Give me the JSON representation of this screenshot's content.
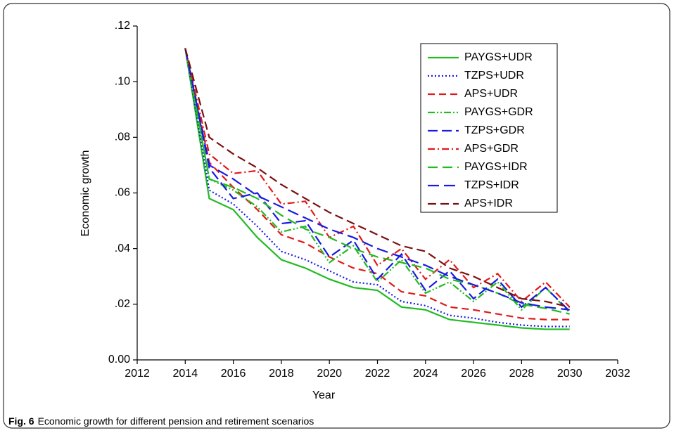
{
  "chart_data": {
    "type": "line",
    "caption_label": "Fig. 6",
    "caption": "Economic growth for different pension and retirement scenarios",
    "xlabel": "Year",
    "ylabel": "Economic growth",
    "x": [
      2014,
      2015,
      2016,
      2017,
      2018,
      2019,
      2020,
      2021,
      2022,
      2023,
      2024,
      2025,
      2026,
      2027,
      2028,
      2029,
      2030
    ],
    "xlim": [
      2012,
      2032
    ],
    "xticks": [
      2012,
      2014,
      2016,
      2018,
      2020,
      2022,
      2024,
      2026,
      2028,
      2030,
      2032
    ],
    "ylim": [
      0,
      0.12
    ],
    "yticks": [
      {
        "value": 0,
        "label": "0.00"
      },
      {
        "value": 0.02,
        "label": ".02"
      },
      {
        "value": 0.04,
        "label": ".04"
      },
      {
        "value": 0.06,
        "label": ".06"
      },
      {
        "value": 0.08,
        "label": ".08"
      },
      {
        "value": 0.1,
        "label": ".10"
      },
      {
        "value": 0.12,
        "label": ".12"
      }
    ],
    "legend": "upper right",
    "series": [
      {
        "name": "PAYGS+UDR",
        "color": "#22bb22",
        "dash": "none",
        "values": [
          0.112,
          0.058,
          0.054,
          0.044,
          0.036,
          0.033,
          0.029,
          0.026,
          0.025,
          0.019,
          0.018,
          0.0145,
          0.0135,
          0.0125,
          0.0115,
          0.011,
          0.011
        ]
      },
      {
        "name": "TZPS+UDR",
        "color": "#1a1ae0",
        "dash": "2,3",
        "values": [
          0.112,
          0.061,
          0.056,
          0.048,
          0.039,
          0.036,
          0.032,
          0.028,
          0.027,
          0.021,
          0.0195,
          0.016,
          0.015,
          0.0135,
          0.0125,
          0.012,
          0.012
        ]
      },
      {
        "name": "APS+UDR",
        "color": "#e01a1a",
        "dash": "10,6",
        "values": [
          0.112,
          0.071,
          0.062,
          0.054,
          0.045,
          0.042,
          0.037,
          0.033,
          0.031,
          0.0245,
          0.023,
          0.019,
          0.018,
          0.0165,
          0.015,
          0.0145,
          0.0145
        ]
      },
      {
        "name": "PAYGS+GDR",
        "color": "#22bb22",
        "dash": "10,3,2,3,2,3",
        "values": [
          0.112,
          0.065,
          0.061,
          0.055,
          0.046,
          0.048,
          0.035,
          0.041,
          0.028,
          0.036,
          0.024,
          0.028,
          0.021,
          0.028,
          0.018,
          0.026,
          0.017
        ]
      },
      {
        "name": "TZPS+GDR",
        "color": "#1a1ae0",
        "dash": "14,6",
        "values": [
          0.112,
          0.069,
          0.058,
          0.06,
          0.049,
          0.05,
          0.037,
          0.043,
          0.029,
          0.038,
          0.025,
          0.032,
          0.022,
          0.029,
          0.019,
          0.026,
          0.0175
        ]
      },
      {
        "name": "APS+GDR",
        "color": "#e01a1a",
        "dash": "10,4,2,4",
        "values": [
          0.112,
          0.074,
          0.067,
          0.068,
          0.056,
          0.057,
          0.044,
          0.048,
          0.034,
          0.04,
          0.029,
          0.036,
          0.026,
          0.031,
          0.021,
          0.028,
          0.019
        ]
      },
      {
        "name": "PAYGS+IDR",
        "color": "#22bb22",
        "dash": "14,7",
        "values": [
          0.112,
          0.065,
          0.062,
          0.058,
          0.052,
          0.047,
          0.044,
          0.04,
          0.037,
          0.035,
          0.033,
          0.029,
          0.027,
          0.024,
          0.02,
          0.0185,
          0.0165
        ]
      },
      {
        "name": "TZPS+IDR",
        "color": "#1a1ae0",
        "dash": "16,7",
        "values": [
          0.112,
          0.07,
          0.065,
          0.059,
          0.055,
          0.051,
          0.047,
          0.044,
          0.04,
          0.037,
          0.034,
          0.03,
          0.027,
          0.024,
          0.0205,
          0.019,
          0.018
        ]
      },
      {
        "name": "APS+IDR",
        "color": "#7a1010",
        "dash": "12,6",
        "values": [
          0.112,
          0.08,
          0.074,
          0.069,
          0.063,
          0.058,
          0.053,
          0.049,
          0.045,
          0.041,
          0.039,
          0.033,
          0.03,
          0.026,
          0.022,
          0.021,
          0.019
        ]
      }
    ]
  }
}
